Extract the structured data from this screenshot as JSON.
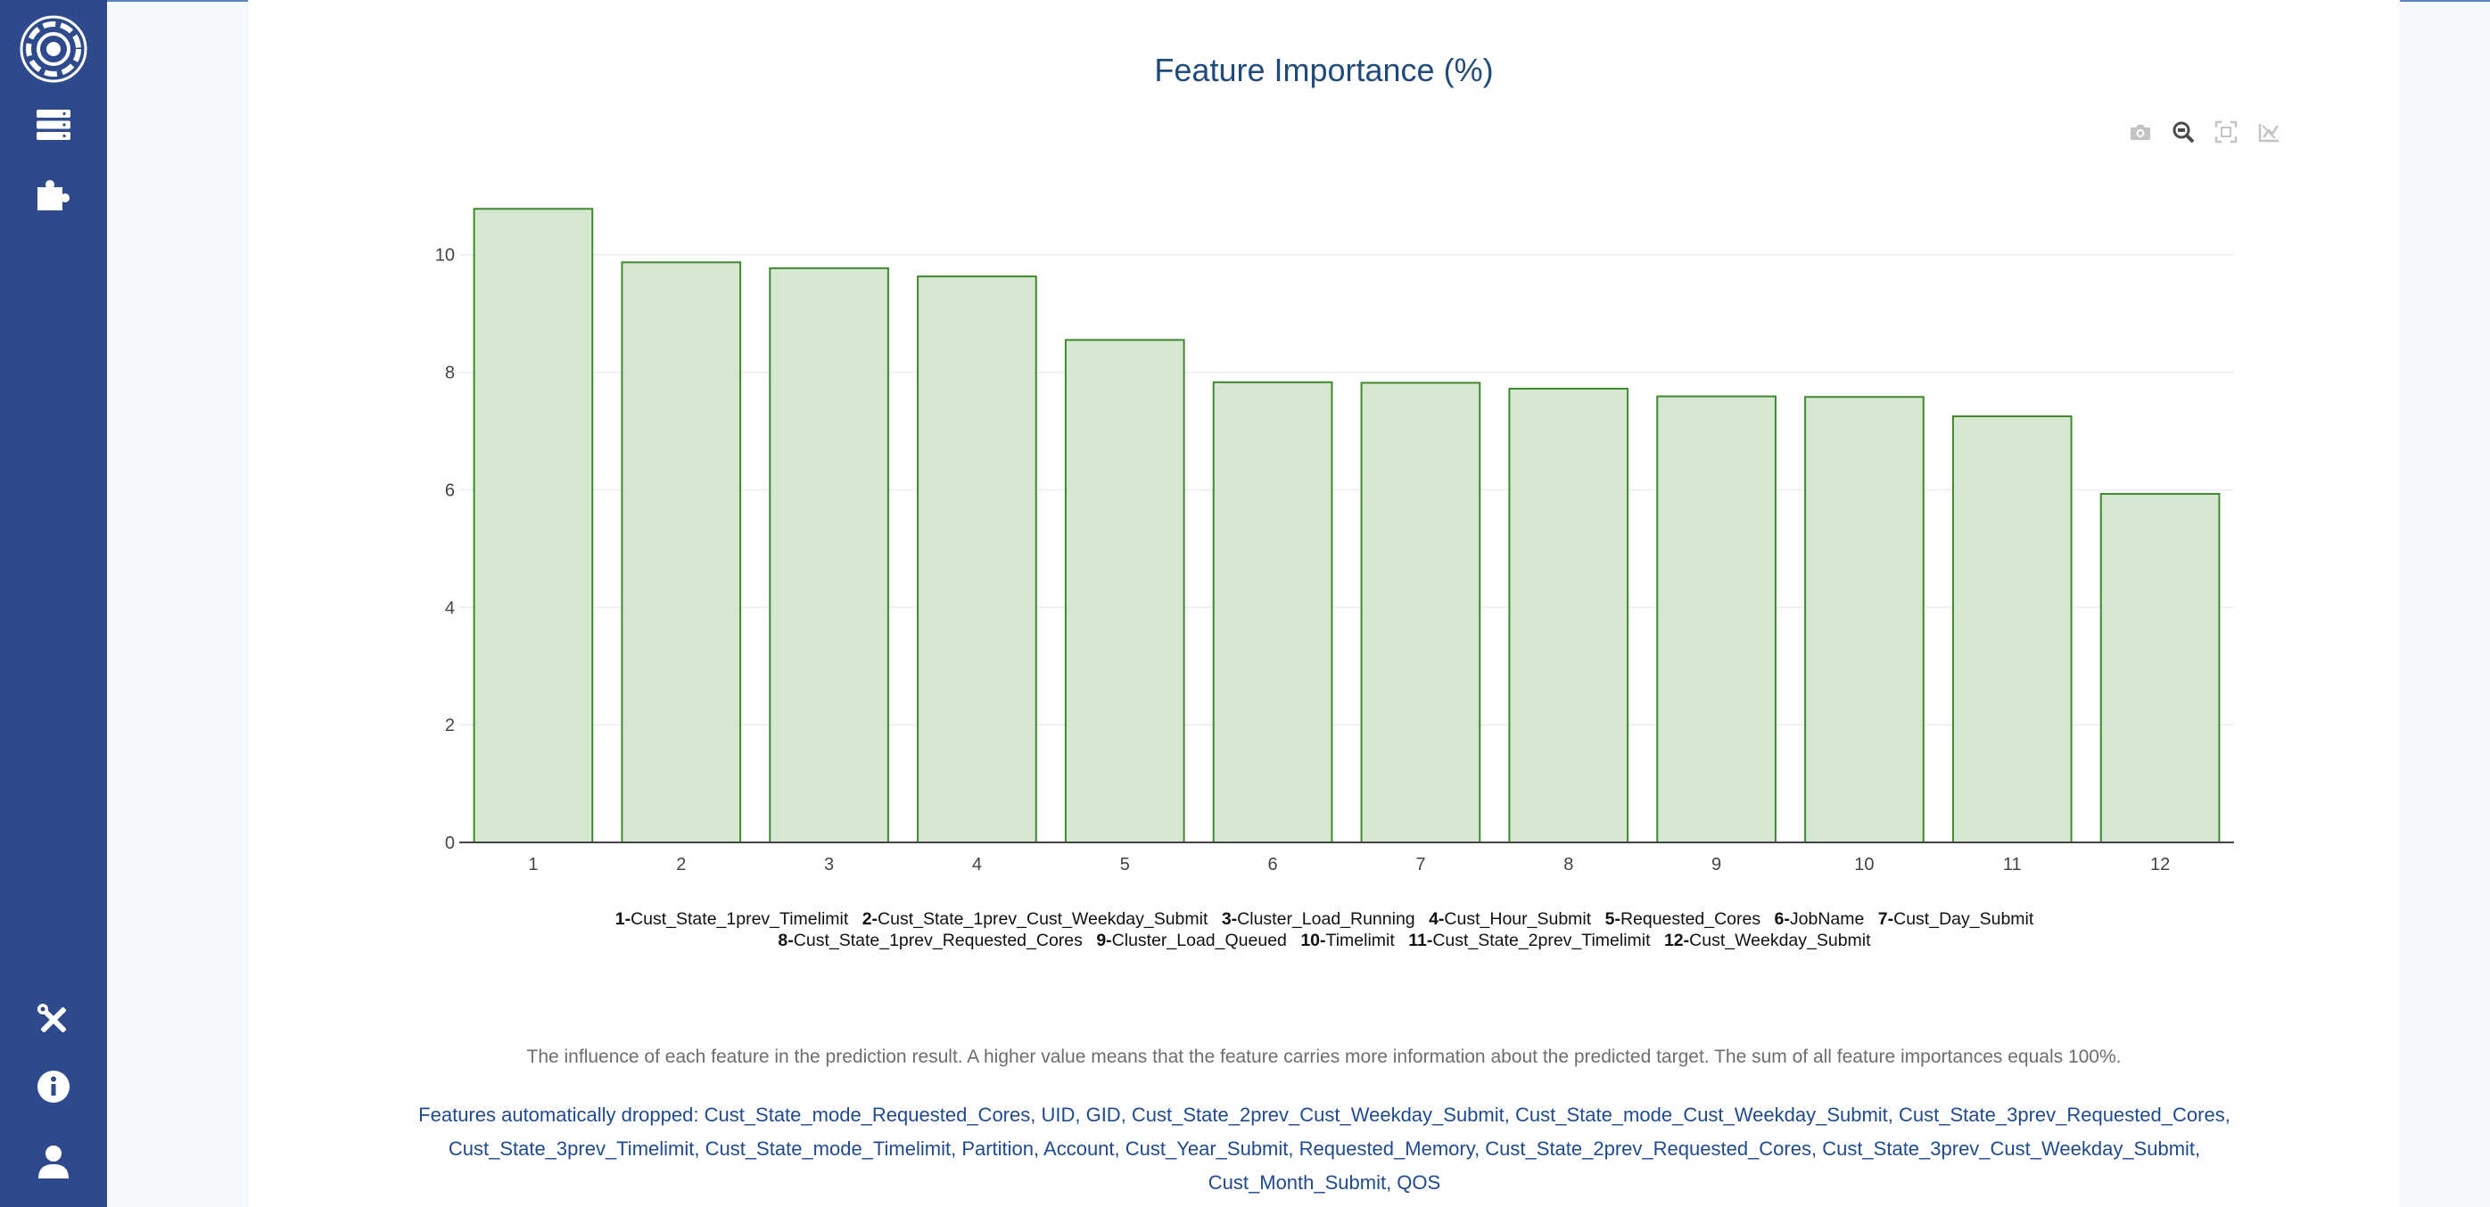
{
  "sidebar": {
    "items": [
      {
        "name": "logo",
        "icon": "logo-icon"
      },
      {
        "name": "servers",
        "icon": "server-icon"
      },
      {
        "name": "plugins",
        "icon": "puzzle-icon"
      },
      {
        "name": "tools",
        "icon": "tools-icon"
      },
      {
        "name": "info",
        "icon": "info-icon"
      },
      {
        "name": "user",
        "icon": "user-icon"
      }
    ],
    "background": "#2e4a8c"
  },
  "modebar": {
    "buttons": [
      "camera-icon",
      "zoom-icon",
      "autoscale-icon",
      "reset-axes-icon"
    ]
  },
  "chart_data": {
    "type": "bar",
    "title": "Feature Importance (%)",
    "categories": [
      "1",
      "2",
      "3",
      "4",
      "5",
      "6",
      "7",
      "8",
      "9",
      "10",
      "11",
      "12"
    ],
    "values": [
      10.78,
      9.87,
      9.77,
      9.63,
      8.55,
      7.83,
      7.82,
      7.72,
      7.59,
      7.58,
      7.25,
      5.93
    ],
    "yticks": [
      "0",
      "2",
      "4",
      "6",
      "8",
      "10"
    ],
    "ylim": [
      0,
      11.3
    ],
    "grid": true,
    "bar_fill": "#d5e6d1",
    "bar_stroke": "#3f8a2f",
    "legend_placement": "bottom",
    "legend": [
      {
        "num": "1-",
        "name": "Cust_State_1prev_Timelimit"
      },
      {
        "num": "2-",
        "name": "Cust_State_1prev_Cust_Weekday_Submit"
      },
      {
        "num": "3-",
        "name": "Cluster_Load_Running"
      },
      {
        "num": "4-",
        "name": "Cust_Hour_Submit"
      },
      {
        "num": "5-",
        "name": "Requested_Cores"
      },
      {
        "num": "6-",
        "name": "JobName"
      },
      {
        "num": "7-",
        "name": "Cust_Day_Submit"
      },
      {
        "num": "8-",
        "name": "Cust_State_1prev_Requested_Cores"
      },
      {
        "num": "9-",
        "name": "Cluster_Load_Queued"
      },
      {
        "num": "10-",
        "name": "Timelimit"
      },
      {
        "num": "11-",
        "name": "Cust_State_2prev_Timelimit"
      },
      {
        "num": "12-",
        "name": "Cust_Weekday_Submit"
      }
    ]
  },
  "description": "The influence of each feature in the prediction result. A higher value means that the feature carries more information about the predicted target. The sum of all feature importances equals 100%.",
  "dropped_features": "Features automatically dropped: Cust_State_mode_Requested_Cores, UID, GID, Cust_State_2prev_Cust_Weekday_Submit, Cust_State_mode_Cust_Weekday_Submit, Cust_State_3prev_Requested_Cores, Cust_State_3prev_Timelimit, Cust_State_mode_Timelimit, Partition, Account, Cust_Year_Submit, Requested_Memory, Cust_State_2prev_Requested_Cores, Cust_State_3prev_Cust_Weekday_Submit, Cust_Month_Submit, QOS"
}
